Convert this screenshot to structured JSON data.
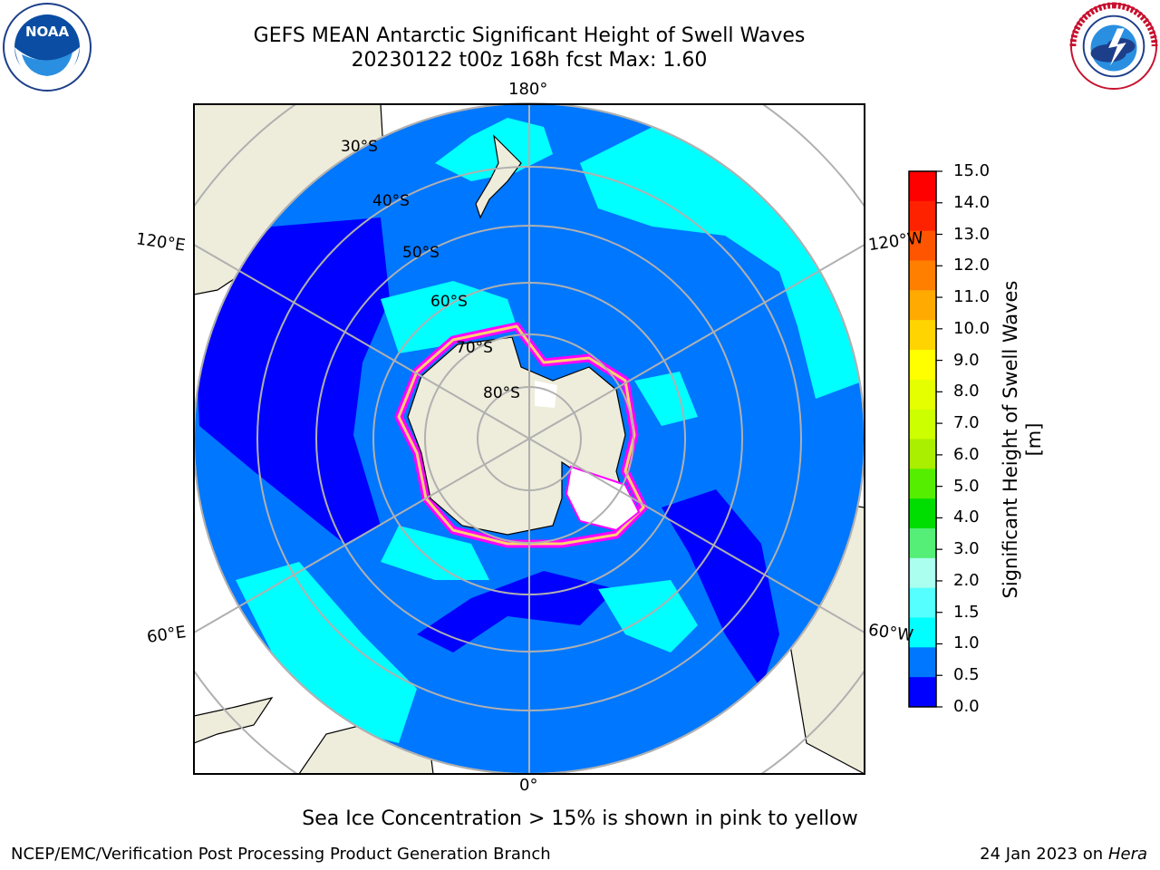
{
  "header": {
    "title_line1": "GEFS MEAN Antarctic Significant Height of Swell Waves",
    "title_line2": "20230122 t00z 168h fcst   Max: 1.60"
  },
  "logos": {
    "left": "noaa-logo",
    "right": "national-weather-service-logo"
  },
  "map": {
    "projection": "south-polar-stereographic",
    "longitude_labels": {
      "top": "180°",
      "bottom": "0°",
      "upper_left": "120°E",
      "upper_right": "120°W",
      "lower_left": "60°E",
      "lower_right": "60°W"
    },
    "latitude_labels": [
      "30°S",
      "40°S",
      "50°S",
      "60°S",
      "70°S",
      "80°S"
    ],
    "colors": {
      "land": "#eeecdb",
      "antarctica": "#eeecdb",
      "wave_0_0_5": "#0000ff",
      "wave_0_5_1_0": "#0077ff",
      "wave_1_0_1_5": "#00ffff",
      "sea_ice_edge": "#ff00ff"
    }
  },
  "colorbar": {
    "label": "Significant Height of Swell Waves [m]",
    "ticks": [
      "15.0",
      "14.0",
      "13.0",
      "12.0",
      "11.0",
      "10.0",
      "9.0",
      "8.0",
      "7.0",
      "6.0",
      "5.0",
      "4.0",
      "3.0",
      "2.0",
      "1.5",
      "1.0",
      "0.5",
      "0.0"
    ],
    "colors_top_to_bottom": [
      "#ff0000",
      "#ff2200",
      "#ff5500",
      "#ff7f00",
      "#ffaa00",
      "#ffd400",
      "#ffff00",
      "#e6ff00",
      "#ccff00",
      "#aaee00",
      "#55ee00",
      "#00dd00",
      "#55ee77",
      "#aaffee",
      "#55ffff",
      "#00ffff",
      "#0077ff",
      "#0000ff"
    ]
  },
  "caption": "Sea Ice Concentration > 15% is shown in pink to yellow",
  "footer": {
    "left": "NCEP/EMC/Verification Post Processing Product Generation Branch",
    "right_prefix": "24 Jan 2023 on ",
    "right_host": "Hera"
  }
}
